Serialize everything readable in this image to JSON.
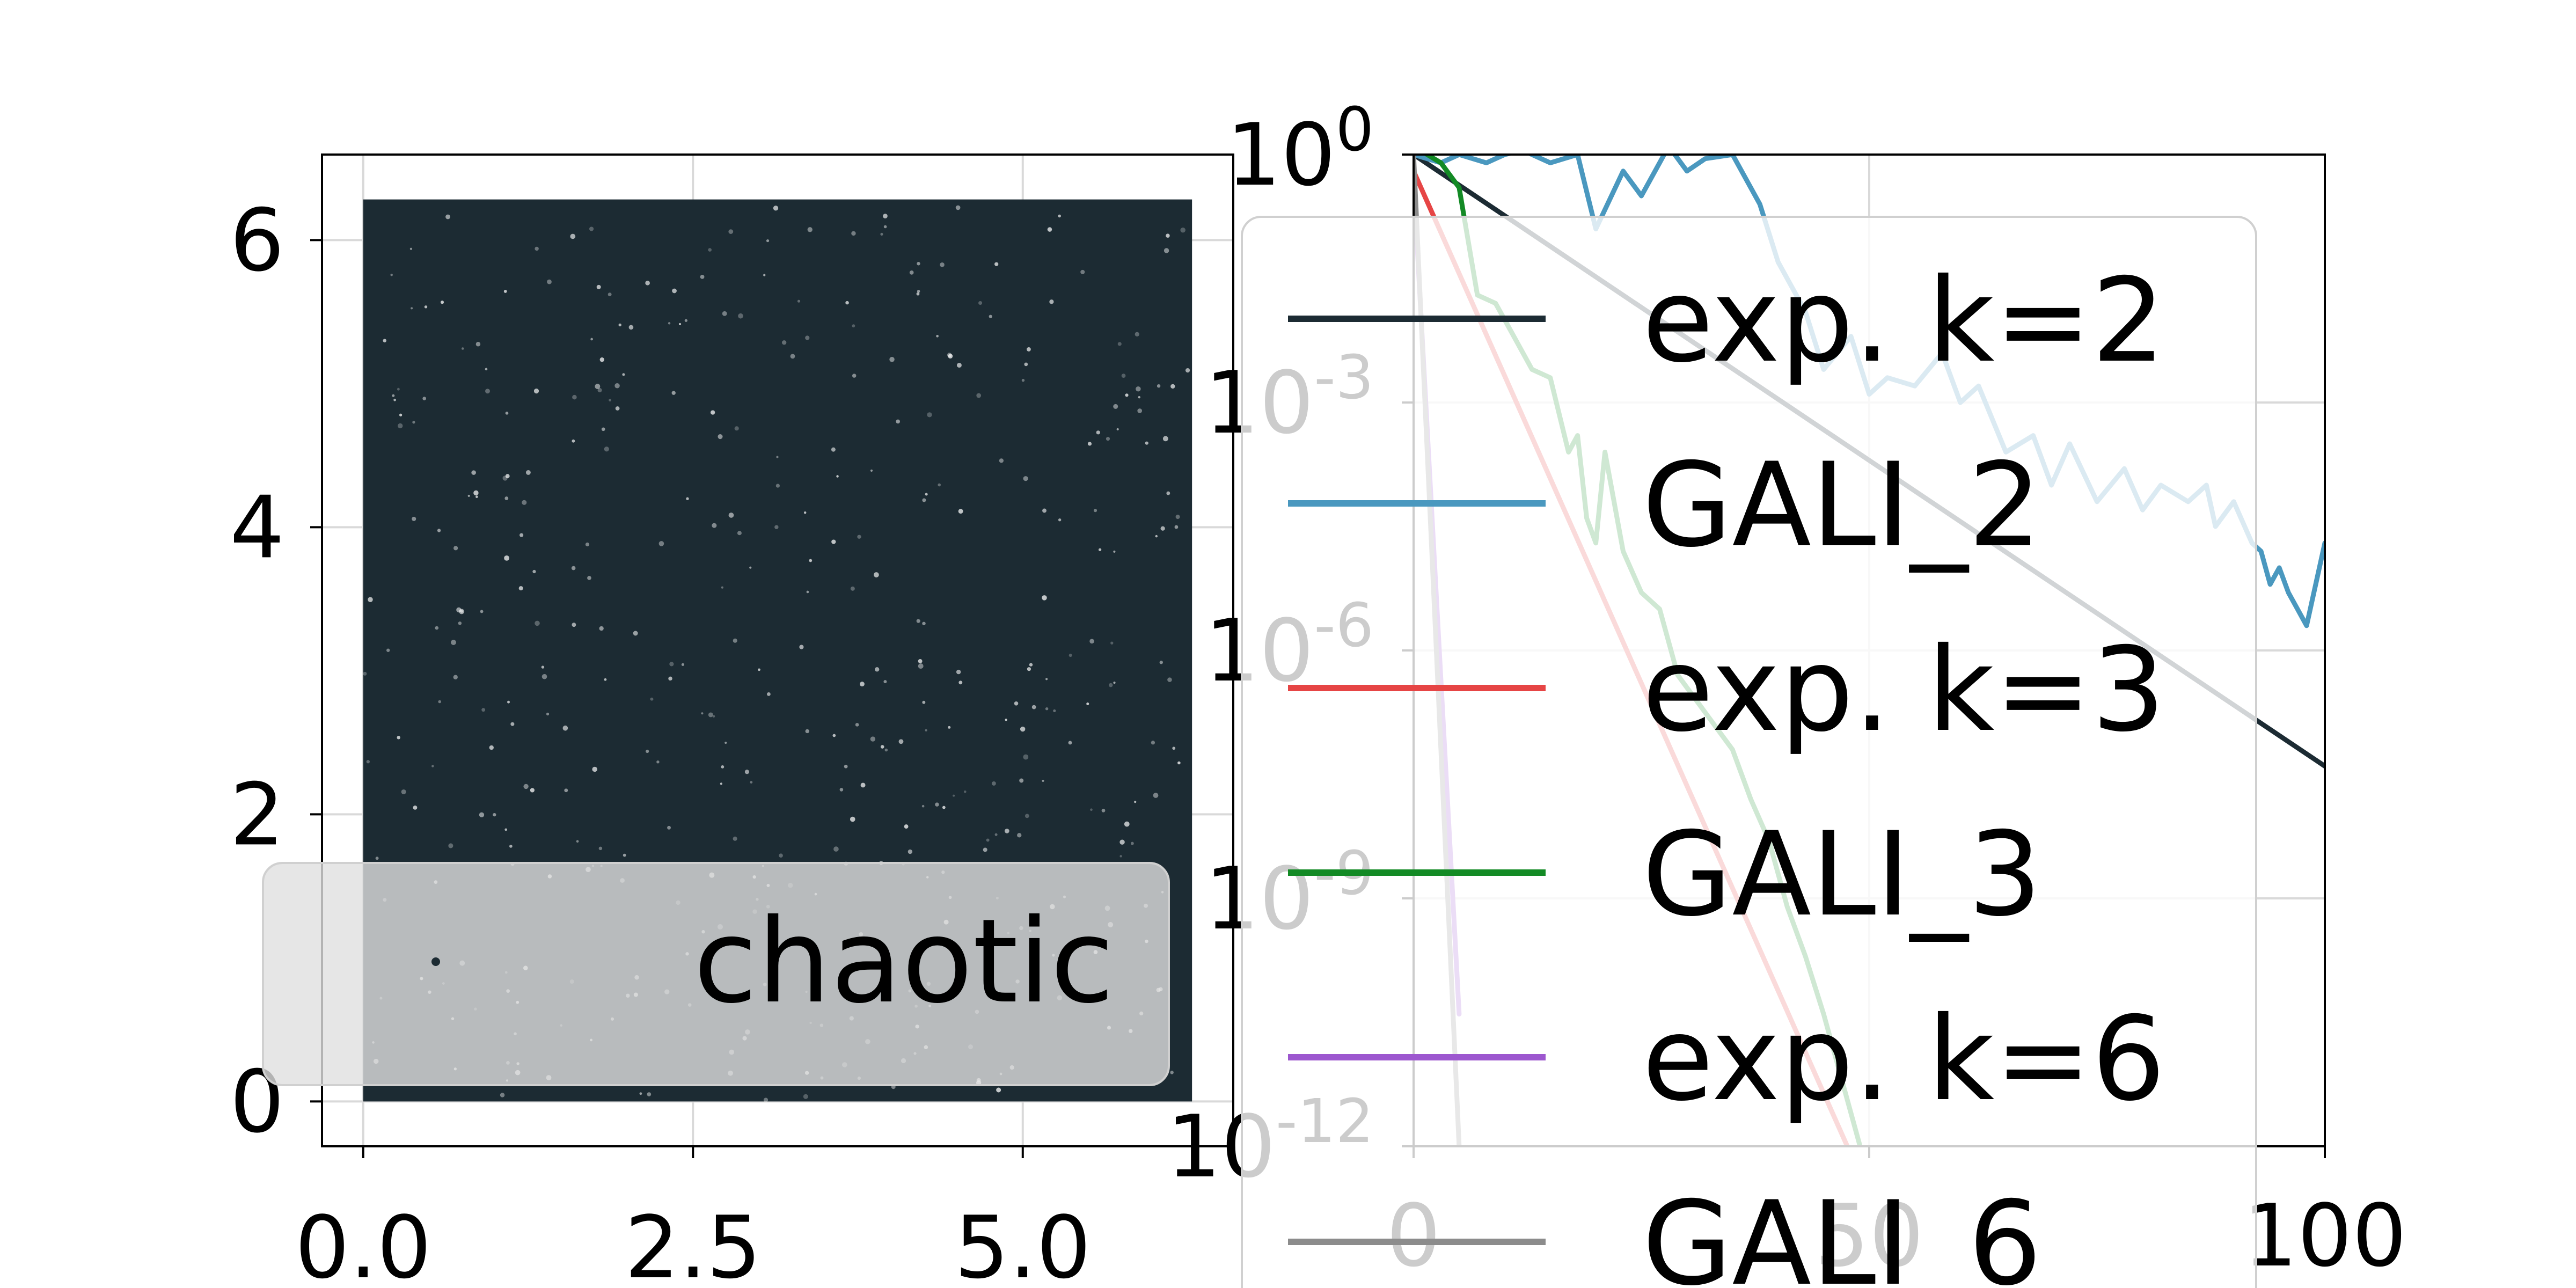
{
  "chart_data": [
    {
      "type": "scatter",
      "xlim": [
        -0.3125,
        6.5958
      ],
      "ylim": [
        -0.3125,
        6.5958
      ],
      "xticks": [
        0.0,
        2.5,
        5.0
      ],
      "xtick_labels": [
        "0.0",
        "2.5",
        "5.0"
      ],
      "yticks": [
        0,
        2,
        4,
        6
      ],
      "ytick_labels": [
        "0",
        "2",
        "4",
        "6"
      ],
      "grid": true,
      "fill_region": {
        "x": [
          0,
          6.2832
        ],
        "y": [
          0,
          6.2832
        ]
      },
      "series": [
        {
          "name": "chaotic",
          "color": "#1c2b33",
          "marker": "point"
        }
      ],
      "legend": {
        "position": "lower-left"
      }
    },
    {
      "type": "line",
      "yscale": "log",
      "xlim": [
        0,
        100
      ],
      "ylim_exp": [
        -12,
        0
      ],
      "xticks": [
        0,
        50,
        100
      ],
      "xtick_labels": [
        "0",
        "50",
        "100"
      ],
      "yticks_exp": [
        0,
        -3,
        -6,
        -9,
        -12
      ],
      "ytick_labels": {
        "base": "10",
        "exponents": [
          "0",
          "-3",
          "-6",
          "-9",
          "-12"
        ]
      },
      "grid": true,
      "legend": {
        "position": "upper-right"
      },
      "series": [
        {
          "name": "exp. k=2",
          "color": "#1c2b33",
          "x": [
            0,
            100
          ],
          "log10_y": [
            0,
            -7.4
          ]
        },
        {
          "name": "GALI_2",
          "color": "#4a98bf",
          "x": [
            0,
            3,
            5,
            8,
            10,
            12,
            15,
            18,
            20,
            23,
            25,
            28,
            30,
            32,
            35,
            38,
            40,
            43,
            45,
            48,
            50,
            52,
            55,
            58,
            60,
            62,
            65,
            68,
            70,
            72,
            75,
            78,
            80,
            82,
            85,
            87,
            88,
            90,
            92,
            93,
            94,
            95,
            96,
            97,
            98,
            100
          ],
          "log10_y": [
            0,
            -0.1,
            0,
            -0.1,
            0,
            0.05,
            -0.1,
            0,
            -0.9,
            -0.2,
            -0.5,
            0.1,
            -0.2,
            -0.05,
            0,
            -0.6,
            -1.3,
            -1.9,
            -2.6,
            -2.2,
            -2.9,
            -2.7,
            -2.8,
            -2.4,
            -3.0,
            -2.8,
            -3.6,
            -3.4,
            -4.0,
            -3.5,
            -4.2,
            -3.8,
            -4.3,
            -4.0,
            -4.2,
            -4.0,
            -4.5,
            -4.2,
            -4.7,
            -4.8,
            -5.2,
            -5.0,
            -5.3,
            -5.5,
            -5.7,
            -4.7
          ]
        },
        {
          "name": "exp. k=3",
          "color": "#e64545",
          "x": [
            0,
            47.6
          ],
          "log10_y": [
            -0.2,
            -12
          ]
        },
        {
          "name": "GALI_3",
          "color": "#138a25",
          "x": [
            0,
            3,
            5,
            7,
            9,
            11,
            13,
            15,
            17,
            18,
            19,
            20,
            21,
            23,
            25,
            27,
            29,
            31,
            33,
            35,
            37,
            39,
            41,
            43,
            45,
            47,
            49
          ],
          "log10_y": [
            0.1,
            -0.1,
            -0.4,
            -1.7,
            -1.8,
            -2.2,
            -2.6,
            -2.7,
            -3.6,
            -3.4,
            -4.4,
            -4.7,
            -3.6,
            -4.8,
            -5.3,
            -5.5,
            -6.3,
            -6.6,
            -6.9,
            -7.2,
            -7.8,
            -8.3,
            -9.1,
            -9.7,
            -10.4,
            -11.2,
            -12
          ]
        },
        {
          "name": "exp. k=6",
          "color": "#9d57cf",
          "x": [
            0,
            5
          ],
          "log10_y": [
            -0.3,
            -10.4
          ]
        },
        {
          "name": "GALI_6",
          "color": "#8c8c8c",
          "x": [
            0,
            5
          ],
          "log10_y": [
            0,
            -12
          ]
        }
      ]
    }
  ]
}
